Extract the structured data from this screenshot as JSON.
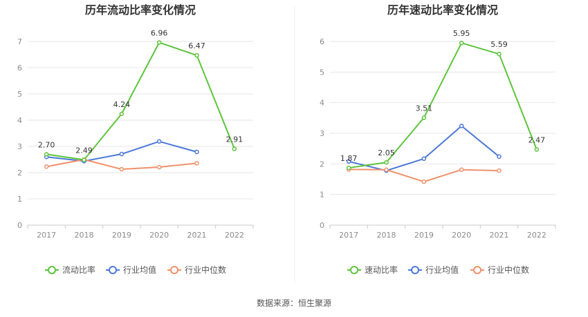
{
  "source": "数据来源：恒生聚源",
  "colors": {
    "primary": "#5cc43a",
    "average": "#4a78d8",
    "median": "#f0906a"
  },
  "chart_data": [
    {
      "type": "line",
      "title": "历年流动比率变化情况",
      "categories": [
        "2017",
        "2018",
        "2019",
        "2020",
        "2021",
        "2022"
      ],
      "ylim": [
        0,
        7
      ],
      "yticks": [
        0,
        1,
        2,
        3,
        4,
        5,
        6,
        7
      ],
      "grid": true,
      "legend_position": "bottom",
      "series": [
        {
          "name": "流动比率",
          "key": "primary",
          "values": [
            2.7,
            2.49,
            4.24,
            6.96,
            6.47,
            2.91
          ],
          "labels": [
            "2.70",
            "2.49",
            "4.24",
            "6.96",
            "6.47",
            "2.91"
          ]
        },
        {
          "name": "行业均值",
          "key": "average",
          "values": [
            2.6,
            2.44,
            2.71,
            3.19,
            2.79,
            null
          ]
        },
        {
          "name": "行业中位数",
          "key": "median",
          "values": [
            2.23,
            2.5,
            2.13,
            2.21,
            2.36,
            null
          ]
        }
      ]
    },
    {
      "type": "line",
      "title": "历年速动比率变化情况",
      "categories": [
        "2017",
        "2018",
        "2019",
        "2020",
        "2021",
        "2022"
      ],
      "ylim": [
        0,
        6
      ],
      "yticks": [
        0,
        1,
        2,
        3,
        4,
        5,
        6
      ],
      "grid": true,
      "legend_position": "bottom",
      "series": [
        {
          "name": "速动比率",
          "key": "primary",
          "values": [
            1.87,
            2.05,
            3.51,
            5.95,
            5.59,
            2.47
          ],
          "labels": [
            "1.87",
            "2.05",
            "3.51",
            "5.95",
            "5.59",
            "2.47"
          ]
        },
        {
          "name": "行业均值",
          "key": "average",
          "values": [
            2.08,
            1.78,
            2.17,
            3.24,
            2.24,
            null
          ]
        },
        {
          "name": "行业中位数",
          "key": "median",
          "values": [
            1.82,
            1.81,
            1.42,
            1.81,
            1.78,
            null
          ]
        }
      ]
    }
  ]
}
